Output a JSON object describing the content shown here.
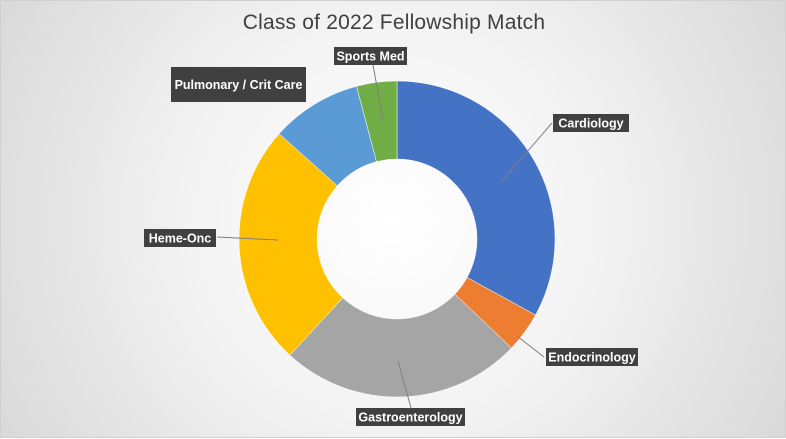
{
  "chart_data": {
    "type": "pie",
    "variant": "doughnut",
    "title": "Class of 2022 Fellowship Match",
    "categories": [
      "Cardiology",
      "Endocrinology",
      "Gastroenterology",
      "Heme-Onc",
      "Pulmonary / Crit Care",
      "Sports Med"
    ],
    "values": [
      32,
      4,
      24,
      24,
      9,
      4
    ],
    "colors": [
      "#4472C4",
      "#ED7D31",
      "#A5A5A5",
      "#FFC000",
      "#5B9BD5",
      "#70AD47"
    ],
    "legend": "none",
    "data_labels": "category names with leader lines"
  }
}
